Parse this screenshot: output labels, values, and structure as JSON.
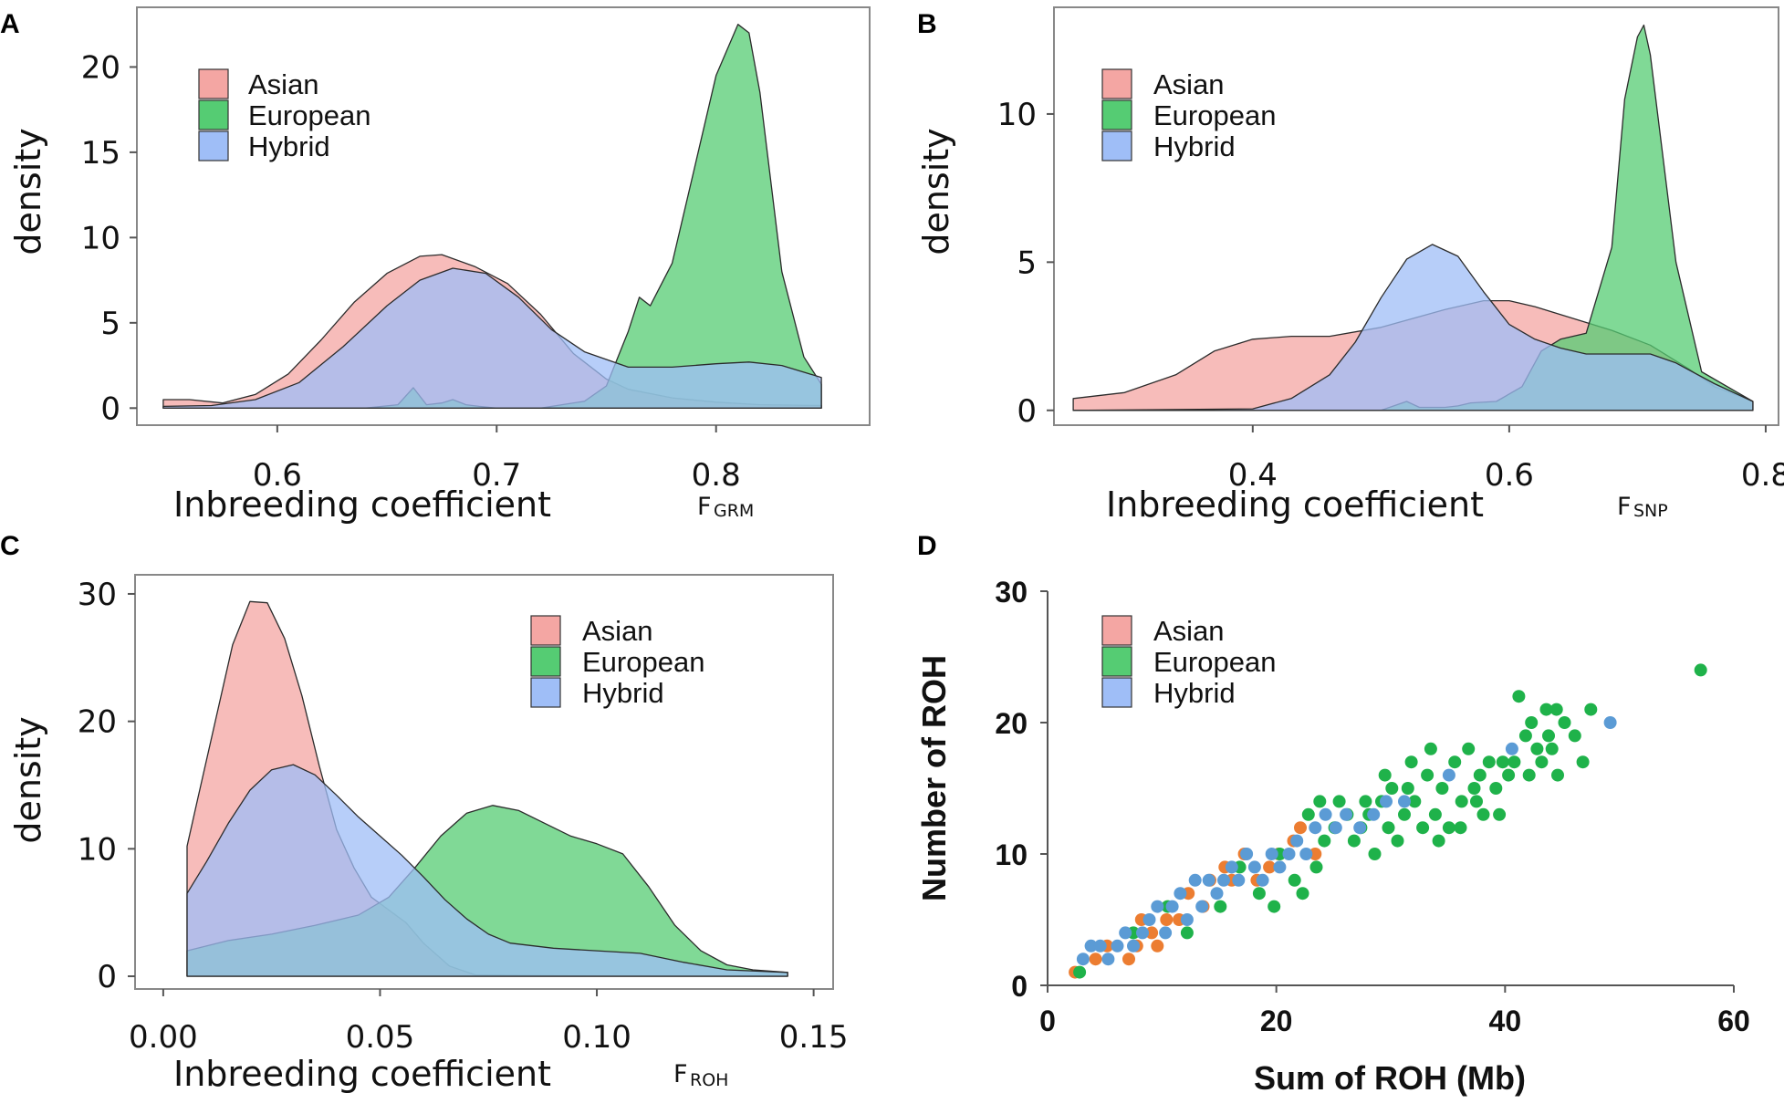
{
  "colors": {
    "asian": "#f4a6a3",
    "european": "#55cc73",
    "hybrid": "#9fbef7",
    "asian_marker": "#ec7d31",
    "european_marker": "#1fb24a",
    "hybrid_marker": "#5b9bd5"
  },
  "legend": {
    "labels": [
      "Asian",
      "European",
      "Hybrid"
    ]
  },
  "chart_data": [
    {
      "id": "A",
      "panel_label": "A",
      "type": "area",
      "ylabel": "density",
      "xlabel": "Inbreeding coefficient",
      "xlabel_sub_main": "F",
      "xlabel_sub_script": "GRM",
      "xlim": [
        0.536,
        0.87
      ],
      "ylim": [
        -1,
        23.5
      ],
      "xticks": [
        "0.6",
        "0.7",
        "0.8"
      ],
      "xtick_values": [
        0.6,
        0.7,
        0.8
      ],
      "yticks": [
        "0",
        "5",
        "10",
        "15",
        "20"
      ],
      "ytick_values": [
        0,
        5,
        10,
        15,
        20
      ],
      "legend_position": "top-left",
      "series": [
        {
          "name": "Asian",
          "x": [
            0.548,
            0.56,
            0.575,
            0.59,
            0.605,
            0.62,
            0.635,
            0.65,
            0.665,
            0.675,
            0.69,
            0.705,
            0.72,
            0.735,
            0.75,
            0.76,
            0.78,
            0.8,
            0.82,
            0.848
          ],
          "y": [
            0.5,
            0.5,
            0.3,
            0.8,
            2.0,
            4.0,
            6.2,
            7.9,
            8.9,
            9.0,
            8.3,
            7.3,
            5.5,
            3.2,
            1.7,
            1.1,
            0.6,
            0.35,
            0.2,
            0.15
          ]
        },
        {
          "name": "European",
          "x": [
            0.548,
            0.64,
            0.655,
            0.662,
            0.668,
            0.675,
            0.68,
            0.686,
            0.692,
            0.7,
            0.72,
            0.74,
            0.75,
            0.76,
            0.765,
            0.77,
            0.78,
            0.79,
            0.8,
            0.81,
            0.815,
            0.82,
            0.83,
            0.84,
            0.848
          ],
          "y": [
            0,
            0,
            0.2,
            1.2,
            0.2,
            0.3,
            0.5,
            0.2,
            0.1,
            0,
            0,
            0.4,
            1.3,
            4.5,
            6.5,
            6.0,
            8.5,
            14.0,
            19.5,
            22.5,
            22.0,
            18.5,
            8.0,
            3.0,
            1.4
          ]
        },
        {
          "name": "Hybrid",
          "x": [
            0.548,
            0.57,
            0.59,
            0.61,
            0.63,
            0.65,
            0.665,
            0.68,
            0.695,
            0.71,
            0.725,
            0.74,
            0.76,
            0.78,
            0.8,
            0.815,
            0.83,
            0.848
          ],
          "y": [
            0.1,
            0.15,
            0.5,
            1.5,
            3.6,
            6.0,
            7.5,
            8.2,
            7.9,
            6.5,
            4.6,
            3.3,
            2.4,
            2.4,
            2.6,
            2.7,
            2.5,
            1.8
          ]
        }
      ]
    },
    {
      "id": "B",
      "panel_label": "B",
      "type": "area",
      "ylabel": "density",
      "xlabel": "Inbreeding coefficient",
      "xlabel_sub_main": "F",
      "xlabel_sub_script": "SNP",
      "xlim": [
        0.245,
        0.81
      ],
      "ylim": [
        -0.5,
        13.6
      ],
      "xticks": [
        "0.4",
        "0.6",
        "0.8"
      ],
      "xtick_values": [
        0.4,
        0.6,
        0.8
      ],
      "yticks": [
        "0",
        "5",
        "10"
      ],
      "ytick_values": [
        0,
        5,
        10
      ],
      "legend_position": "top-left",
      "series": [
        {
          "name": "Asian",
          "x": [
            0.26,
            0.3,
            0.34,
            0.37,
            0.4,
            0.43,
            0.46,
            0.5,
            0.55,
            0.58,
            0.6,
            0.62,
            0.65,
            0.68,
            0.71,
            0.74,
            0.76,
            0.79
          ],
          "y": [
            0.4,
            0.6,
            1.2,
            2.0,
            2.4,
            2.5,
            2.5,
            2.8,
            3.4,
            3.7,
            3.7,
            3.5,
            3.1,
            2.7,
            2.2,
            1.4,
            0.8,
            0.3
          ]
        },
        {
          "name": "European",
          "x": [
            0.26,
            0.5,
            0.51,
            0.52,
            0.53,
            0.55,
            0.56,
            0.57,
            0.59,
            0.61,
            0.625,
            0.64,
            0.66,
            0.68,
            0.69,
            0.7,
            0.705,
            0.71,
            0.73,
            0.75,
            0.79
          ],
          "y": [
            0,
            0,
            0.15,
            0.3,
            0.1,
            0.1,
            0.15,
            0.25,
            0.3,
            0.8,
            2.0,
            2.4,
            2.6,
            5.5,
            10.5,
            12.6,
            13.0,
            12.0,
            5.0,
            1.3,
            0.3
          ]
        },
        {
          "name": "Hybrid",
          "x": [
            0.26,
            0.4,
            0.43,
            0.46,
            0.48,
            0.5,
            0.52,
            0.54,
            0.56,
            0.58,
            0.6,
            0.62,
            0.64,
            0.66,
            0.69,
            0.71,
            0.73,
            0.76,
            0.79
          ],
          "y": [
            0,
            0.05,
            0.4,
            1.2,
            2.3,
            3.8,
            5.1,
            5.6,
            5.2,
            4.0,
            2.9,
            2.4,
            2.1,
            1.9,
            1.9,
            1.9,
            1.6,
            0.9,
            0.3
          ]
        }
      ]
    },
    {
      "id": "C",
      "panel_label": "C",
      "type": "area",
      "ylabel": "density",
      "xlabel": "Inbreeding coefficient",
      "xlabel_sub_main": "F",
      "xlabel_sub_script": "ROH",
      "xlim": [
        -0.0065,
        0.1545
      ],
      "ylim": [
        -1,
        31.5
      ],
      "xticks": [
        "0.00",
        "0.05",
        "0.10",
        "0.15"
      ],
      "xtick_values": [
        0.0,
        0.05,
        0.1,
        0.15
      ],
      "yticks": [
        "0",
        "10",
        "20",
        "30"
      ],
      "ytick_values": [
        0,
        10,
        20,
        30
      ],
      "legend_position": "top-right",
      "series": [
        {
          "name": "Asian",
          "x": [
            0.0055,
            0.008,
            0.012,
            0.016,
            0.02,
            0.024,
            0.028,
            0.032,
            0.036,
            0.04,
            0.044,
            0.048,
            0.052,
            0.056,
            0.06,
            0.066,
            0.072,
            0.1,
            0.144
          ],
          "y": [
            10.2,
            14,
            20,
            26,
            29.4,
            29.3,
            26.5,
            22,
            16.5,
            11.5,
            8.5,
            6.2,
            5.2,
            4.2,
            2.6,
            0.8,
            0.1,
            0,
            0
          ]
        },
        {
          "name": "European",
          "x": [
            0.0055,
            0.015,
            0.025,
            0.035,
            0.045,
            0.052,
            0.058,
            0.064,
            0.07,
            0.076,
            0.082,
            0.088,
            0.094,
            0.1,
            0.106,
            0.112,
            0.118,
            0.124,
            0.13,
            0.136,
            0.144
          ],
          "y": [
            2.0,
            2.8,
            3.3,
            4.0,
            4.8,
            6.2,
            8.5,
            11.0,
            12.8,
            13.4,
            13.0,
            12.0,
            11.0,
            10.4,
            9.6,
            7.0,
            4.0,
            2.0,
            0.9,
            0.5,
            0.3
          ]
        },
        {
          "name": "Hybrid",
          "x": [
            0.0055,
            0.01,
            0.015,
            0.02,
            0.025,
            0.03,
            0.035,
            0.04,
            0.045,
            0.05,
            0.055,
            0.06,
            0.065,
            0.07,
            0.075,
            0.08,
            0.09,
            0.1,
            0.11,
            0.12,
            0.13,
            0.144
          ],
          "y": [
            6.5,
            9,
            12,
            14.6,
            16.2,
            16.6,
            15.8,
            14.2,
            12.5,
            11,
            9.5,
            7.8,
            6.0,
            4.5,
            3.3,
            2.6,
            2.2,
            2.0,
            1.8,
            1.1,
            0.5,
            0.3
          ]
        }
      ]
    },
    {
      "id": "D",
      "panel_label": "D",
      "type": "scatter",
      "xlabel": "Sum of ROH (Mb)",
      "ylabel": "Number of ROH",
      "xlim": [
        0,
        60
      ],
      "ylim": [
        0,
        30
      ],
      "xticks": [
        "0",
        "20",
        "40",
        "60"
      ],
      "xtick_values": [
        0,
        20,
        40,
        60
      ],
      "yticks": [
        "0",
        "10",
        "20",
        "30"
      ],
      "ytick_values": [
        0,
        10,
        20,
        30
      ],
      "legend_position": "top-left",
      "series": [
        {
          "name": "Asian",
          "points": [
            [
              2.4,
              1
            ],
            [
              4.2,
              2
            ],
            [
              5.2,
              3
            ],
            [
              7.1,
              2
            ],
            [
              7.8,
              3
            ],
            [
              8.2,
              5
            ],
            [
              9.1,
              4
            ],
            [
              9.6,
              3
            ],
            [
              10.4,
              5
            ],
            [
              11.5,
              5
            ],
            [
              12.3,
              7
            ],
            [
              13.6,
              6
            ],
            [
              14.2,
              8
            ],
            [
              15.5,
              9
            ],
            [
              16.1,
              8
            ],
            [
              17.2,
              10
            ],
            [
              18.3,
              8
            ],
            [
              19.4,
              9
            ],
            [
              20.2,
              10
            ],
            [
              21.5,
              11
            ],
            [
              22.1,
              12
            ],
            [
              23.4,
              10
            ]
          ]
        },
        {
          "name": "European",
          "points": [
            [
              2.8,
              1
            ],
            [
              7.5,
              4
            ],
            [
              10.5,
              6
            ],
            [
              12.2,
              4
            ],
            [
              15.1,
              6
            ],
            [
              16.8,
              9
            ],
            [
              18.5,
              7
            ],
            [
              20.3,
              10
            ],
            [
              21.6,
              8
            ],
            [
              22.3,
              7
            ],
            [
              22.8,
              13
            ],
            [
              23.5,
              9
            ],
            [
              24.2,
              11
            ],
            [
              25.1,
              12
            ],
            [
              26.2,
              13
            ],
            [
              26.8,
              11
            ],
            [
              27.4,
              12
            ],
            [
              28.1,
              13
            ],
            [
              28.6,
              10
            ],
            [
              29.2,
              14
            ],
            [
              29.8,
              12
            ],
            [
              30.1,
              15
            ],
            [
              30.6,
              11
            ],
            [
              31.2,
              13
            ],
            [
              31.5,
              15
            ],
            [
              32.1,
              14
            ],
            [
              32.8,
              12
            ],
            [
              33.2,
              16
            ],
            [
              33.9,
              13
            ],
            [
              34.5,
              15
            ],
            [
              35.1,
              12
            ],
            [
              35.6,
              17
            ],
            [
              36.2,
              14
            ],
            [
              36.8,
              18
            ],
            [
              37.3,
              15
            ],
            [
              37.8,
              16
            ],
            [
              38.1,
              13
            ],
            [
              38.6,
              17
            ],
            [
              39.2,
              15
            ],
            [
              39.8,
              17
            ],
            [
              40.3,
              16
            ],
            [
              40.8,
              17
            ],
            [
              41.2,
              22
            ],
            [
              41.8,
              19
            ],
            [
              42.3,
              20
            ],
            [
              42.8,
              18
            ],
            [
              43.2,
              17
            ],
            [
              43.6,
              21
            ],
            [
              44.1,
              18
            ],
            [
              44.6,
              16
            ],
            [
              45.2,
              20
            ],
            [
              46.1,
              19
            ],
            [
              46.8,
              17
            ],
            [
              47.5,
              21
            ],
            [
              57.1,
              24
            ],
            [
              23.8,
              14
            ],
            [
              27.8,
              14
            ],
            [
              31.8,
              17
            ],
            [
              34.2,
              11
            ],
            [
              37.5,
              14
            ],
            [
              42.1,
              16
            ],
            [
              44.5,
              21
            ],
            [
              36.1,
              12
            ],
            [
              39.5,
              13
            ],
            [
              19.8,
              6
            ],
            [
              25.5,
              14
            ],
            [
              29.5,
              16
            ],
            [
              33.5,
              18
            ],
            [
              43.8,
              19
            ]
          ]
        },
        {
          "name": "Hybrid",
          "points": [
            [
              3.1,
              2
            ],
            [
              3.8,
              3
            ],
            [
              4.6,
              3
            ],
            [
              5.3,
              2
            ],
            [
              6.1,
              3
            ],
            [
              6.8,
              4
            ],
            [
              7.5,
              3
            ],
            [
              8.3,
              4
            ],
            [
              8.9,
              5
            ],
            [
              9.6,
              6
            ],
            [
              10.3,
              4
            ],
            [
              10.9,
              6
            ],
            [
              11.6,
              7
            ],
            [
              12.2,
              5
            ],
            [
              12.9,
              8
            ],
            [
              13.5,
              6
            ],
            [
              14.1,
              8
            ],
            [
              14.8,
              7
            ],
            [
              15.4,
              8
            ],
            [
              16.1,
              9
            ],
            [
              16.7,
              8
            ],
            [
              17.4,
              10
            ],
            [
              18.1,
              9
            ],
            [
              18.8,
              8
            ],
            [
              19.6,
              10
            ],
            [
              20.3,
              9
            ],
            [
              21.1,
              10
            ],
            [
              21.8,
              11
            ],
            [
              22.6,
              10
            ],
            [
              23.4,
              12
            ],
            [
              24.3,
              13
            ],
            [
              25.2,
              12
            ],
            [
              26.1,
              13
            ],
            [
              27.3,
              12
            ],
            [
              28.5,
              13
            ],
            [
              29.6,
              14
            ],
            [
              31.2,
              14
            ],
            [
              35.1,
              16
            ],
            [
              40.6,
              18
            ],
            [
              49.2,
              20
            ]
          ]
        }
      ]
    }
  ]
}
